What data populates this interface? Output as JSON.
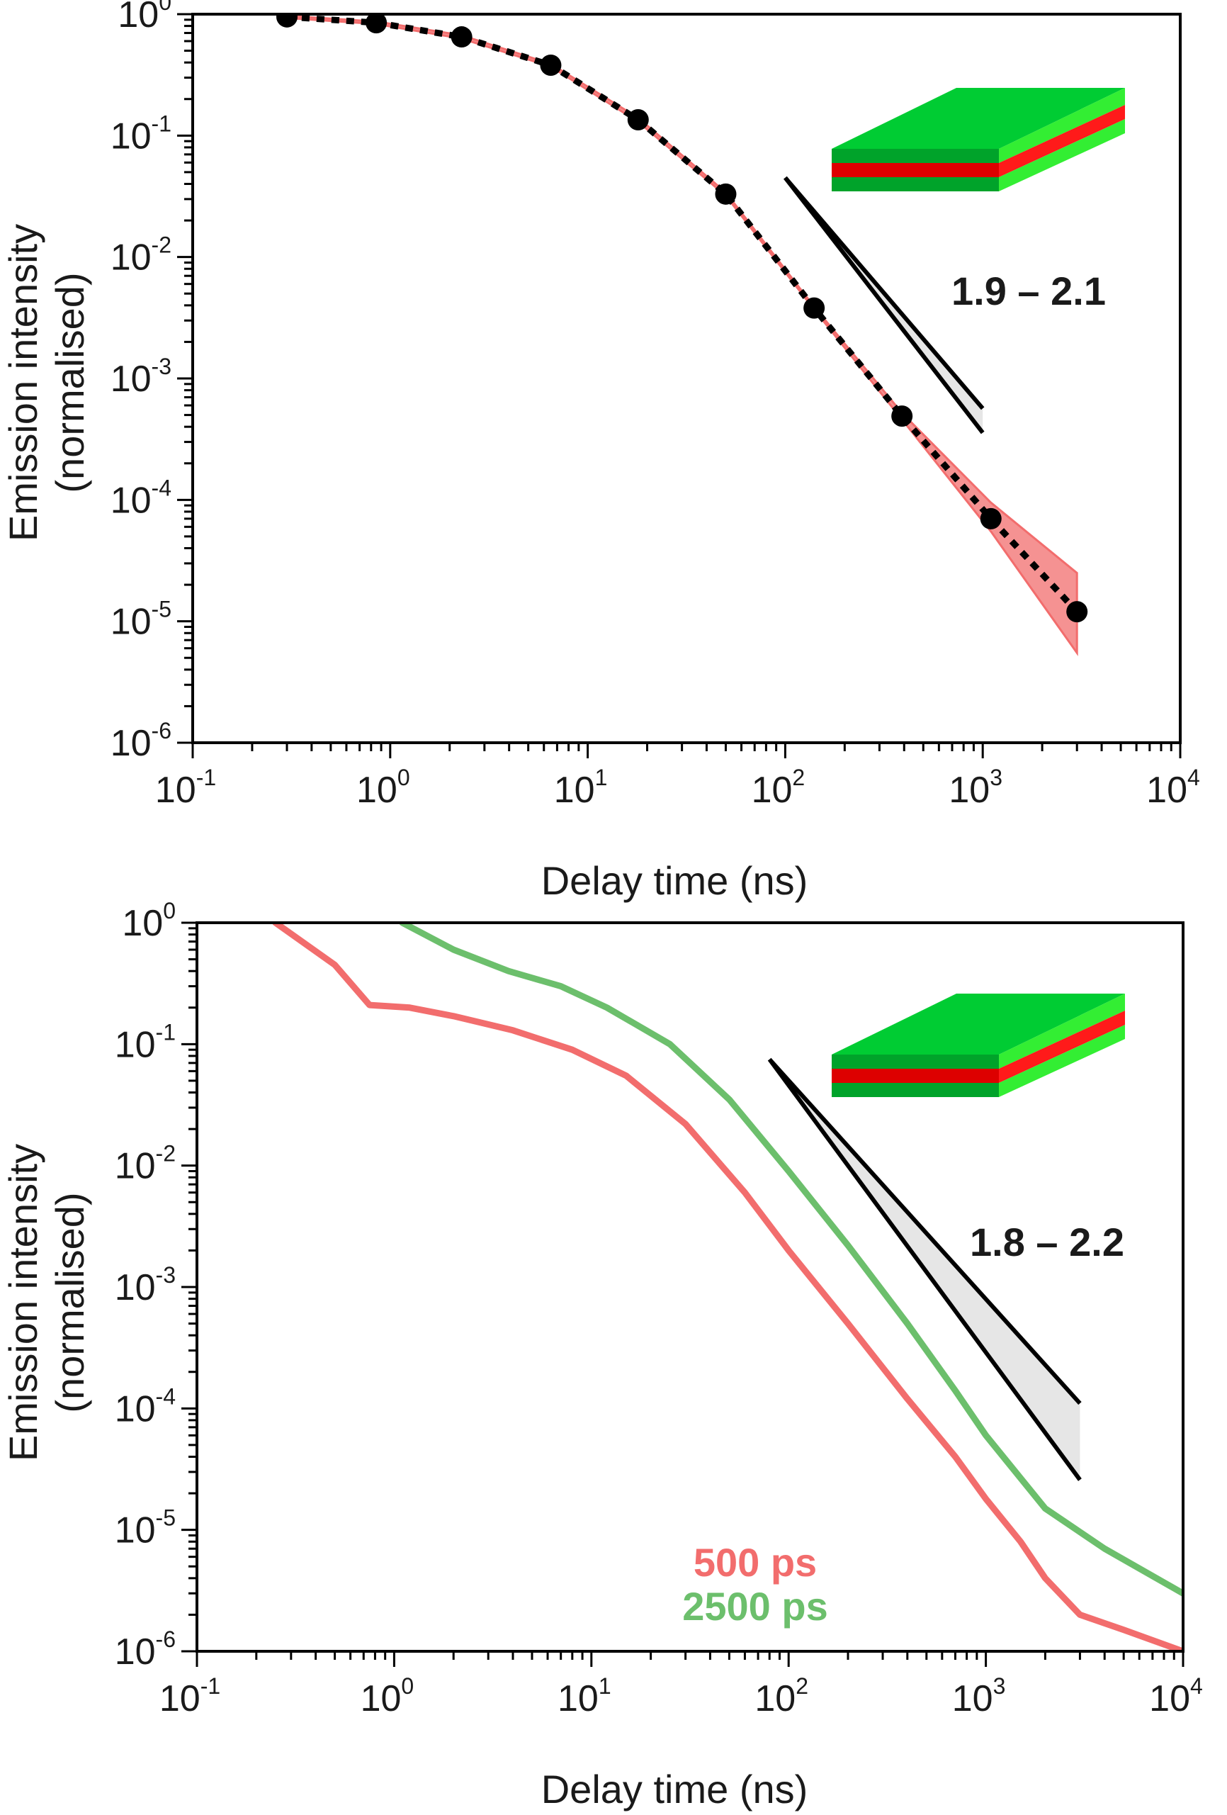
{
  "chart_data": [
    {
      "type": "line",
      "panel": "top",
      "xlabel": "Delay time (ns)",
      "ylabel_line1": "Emission intensity",
      "ylabel_line2": "(normalised)",
      "xscale": "log",
      "yscale": "log",
      "xlim": [
        0.1,
        10000
      ],
      "ylim": [
        1e-06,
        1
      ],
      "x_ticks": [
        {
          "base": "10",
          "exp": "-1"
        },
        {
          "base": "10",
          "exp": "0"
        },
        {
          "base": "10",
          "exp": "1"
        },
        {
          "base": "10",
          "exp": "2"
        },
        {
          "base": "10",
          "exp": "3"
        },
        {
          "base": "10",
          "exp": "4"
        }
      ],
      "y_ticks": [
        {
          "base": "10",
          "exp": "0"
        },
        {
          "base": "10",
          "exp": "-1"
        },
        {
          "base": "10",
          "exp": "-2"
        },
        {
          "base": "10",
          "exp": "-3"
        },
        {
          "base": "10",
          "exp": "-4"
        },
        {
          "base": "10",
          "exp": "-5"
        },
        {
          "base": "10",
          "exp": "-6"
        }
      ],
      "series": [
        {
          "name": "data points with dotted guide",
          "color": "#000000",
          "x": [
            0.3,
            0.85,
            2.3,
            6.5,
            18,
            50,
            140,
            390,
            1100,
            3000
          ],
          "y": [
            0.95,
            0.85,
            0.65,
            0.38,
            0.135,
            0.033,
            0.0038,
            0.00049,
            7e-05,
            1.2e-05
          ]
        },
        {
          "name": "uncertainty band",
          "color": "#f26d6d",
          "x": [
            0.3,
            0.85,
            2.3,
            6.5,
            18,
            50,
            140,
            390,
            1100,
            3000
          ],
          "y_upper": [
            0.97,
            0.87,
            0.67,
            0.39,
            0.14,
            0.034,
            0.0039,
            0.00052,
            9.5e-05,
            2.5e-05
          ],
          "y_lower": [
            0.93,
            0.83,
            0.63,
            0.37,
            0.13,
            0.032,
            0.0037,
            0.00046,
            5.5e-05,
            5.5e-06
          ]
        }
      ],
      "slope_guide": {
        "label": "1.9 – 2.1",
        "x": [
          100,
          1000
        ],
        "y_start": 0.045,
        "slopes": [
          1.9,
          2.1
        ]
      },
      "inset_icon": "layered-film-icon",
      "colors": {
        "green_top": "#00cc33",
        "green_side": "#00a32a",
        "green_right": "#33ee33",
        "red": "#dd0000",
        "red_right": "#ff1a1a"
      }
    },
    {
      "type": "line",
      "panel": "bottom",
      "xlabel": "Delay time (ns)",
      "ylabel_line1": "Emission intensity",
      "ylabel_line2": "(normalised)",
      "xscale": "log",
      "yscale": "log",
      "xlim": [
        0.1,
        10000
      ],
      "ylim": [
        1e-06,
        1
      ],
      "x_ticks": [
        {
          "base": "10",
          "exp": "-1"
        },
        {
          "base": "10",
          "exp": "0"
        },
        {
          "base": "10",
          "exp": "1"
        },
        {
          "base": "10",
          "exp": "2"
        },
        {
          "base": "10",
          "exp": "3"
        },
        {
          "base": "10",
          "exp": "4"
        }
      ],
      "y_ticks": [
        {
          "base": "10",
          "exp": "0"
        },
        {
          "base": "10",
          "exp": "-1"
        },
        {
          "base": "10",
          "exp": "-2"
        },
        {
          "base": "10",
          "exp": "-3"
        },
        {
          "base": "10",
          "exp": "-4"
        },
        {
          "base": "10",
          "exp": "-5"
        },
        {
          "base": "10",
          "exp": "-6"
        }
      ],
      "series": [
        {
          "name": "500 ps",
          "color": "#f26d6d",
          "x": [
            0.25,
            0.5,
            0.75,
            1.2,
            2,
            4,
            8,
            15,
            30,
            60,
            100,
            200,
            400,
            700,
            1000,
            1500,
            2000,
            3000,
            5000,
            10000
          ],
          "y": [
            1,
            0.45,
            0.21,
            0.2,
            0.17,
            0.13,
            0.09,
            0.055,
            0.022,
            0.006,
            0.002,
            0.0005,
            0.00012,
            4e-05,
            1.8e-05,
            8e-06,
            4e-06,
            2e-06,
            1.5e-06,
            1e-06
          ]
        },
        {
          "name": "2500 ps",
          "color": "#6cbf6c",
          "x": [
            1.1,
            2,
            3.8,
            7,
            12,
            25,
            50,
            100,
            200,
            400,
            700,
            1000,
            2000,
            4000,
            10000
          ],
          "y": [
            1,
            0.6,
            0.4,
            0.3,
            0.2,
            0.1,
            0.035,
            0.009,
            0.0022,
            0.0005,
            0.00014,
            6e-05,
            1.5e-05,
            7e-06,
            3e-06
          ]
        }
      ],
      "slope_guide": {
        "label": "1.8 – 2.2",
        "x": [
          80,
          3000
        ],
        "y_start": 0.075,
        "slopes": [
          1.8,
          2.2
        ]
      },
      "legend": [
        {
          "label": "500 ps",
          "color": "#f26d6d"
        },
        {
          "label": "2500 ps",
          "color": "#6cbf6c"
        }
      ],
      "inset_icon": "layered-film-icon",
      "colors": {
        "green_top": "#00cc33",
        "green_side": "#00a32a",
        "green_right": "#33ee33",
        "red": "#dd0000",
        "red_right": "#ff1a1a"
      }
    }
  ]
}
